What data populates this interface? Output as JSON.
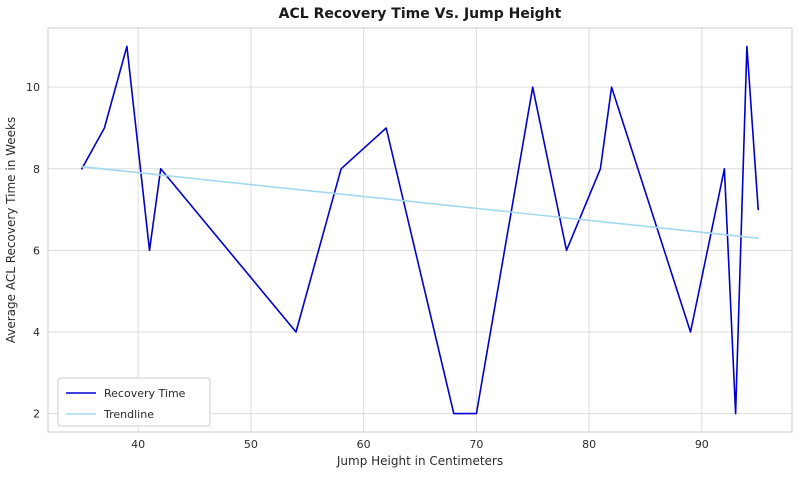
{
  "chart_data": {
    "type": "line",
    "title": "ACL Recovery Time Vs. Jump Height",
    "xlabel": "Jump Height in Centimeters",
    "ylabel": "Average ACL Recovery Time in Weeks",
    "xlim": [
      32,
      98
    ],
    "ylim": [
      1.55,
      11.45
    ],
    "xticks": [
      40,
      50,
      60,
      70,
      80,
      90
    ],
    "yticks": [
      2,
      4,
      6,
      8,
      10
    ],
    "grid": true,
    "grid_color": "#dcdcdc",
    "plot_border_color": "#cccccc",
    "legend_position": "lower left",
    "series": [
      {
        "name": "Recovery Time",
        "color": "#0000cd",
        "width": 1.6,
        "points": [
          [
            35,
            8
          ],
          [
            37,
            9
          ],
          [
            39,
            11
          ],
          [
            41,
            6
          ],
          [
            42,
            8
          ],
          [
            54,
            4
          ],
          [
            58,
            8
          ],
          [
            62,
            9
          ],
          [
            68,
            2
          ],
          [
            70,
            2
          ],
          [
            75,
            10
          ],
          [
            78,
            6
          ],
          [
            81,
            8
          ],
          [
            82,
            10
          ],
          [
            89,
            4
          ],
          [
            92,
            8
          ],
          [
            93,
            2
          ],
          [
            94,
            11
          ],
          [
            95,
            7
          ]
        ]
      },
      {
        "name": "Trendline",
        "color": "#a3d8ef",
        "width": 1.6,
        "points": [
          [
            35,
            8.05
          ],
          [
            95,
            6.3
          ]
        ]
      }
    ]
  }
}
